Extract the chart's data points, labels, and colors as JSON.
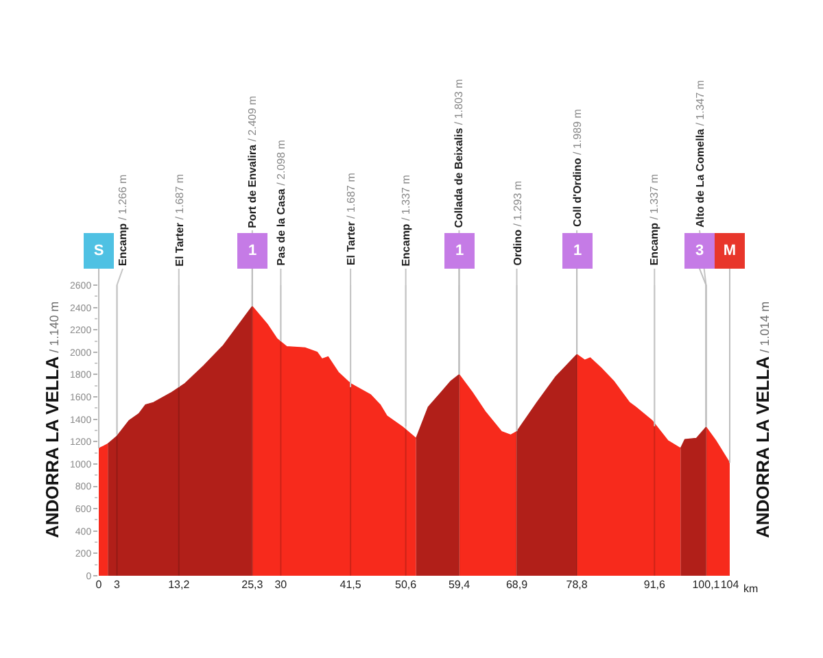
{
  "chart_data": {
    "type": "area",
    "xlim": [
      0,
      104
    ],
    "ylim": [
      0,
      2600
    ],
    "xticks": [
      0,
      3,
      {
        "value": 13.2,
        "label": "13,2"
      },
      {
        "value": 25.3,
        "label": "25,3"
      },
      30,
      {
        "value": 41.5,
        "label": "41,5"
      },
      {
        "value": 50.6,
        "label": "50,6"
      },
      {
        "value": 59.4,
        "label": "59,4"
      },
      {
        "value": 68.9,
        "label": "68,9"
      },
      {
        "value": 78.8,
        "label": "78,8"
      },
      {
        "value": 91.6,
        "label": "91,6"
      },
      {
        "value": 100.1,
        "label": "100,1"
      },
      104
    ],
    "xlabel": "km",
    "yticks": [
      0,
      {
        "value": 100,
        "label": null
      },
      200,
      {
        "value": 300,
        "label": null
      },
      400,
      {
        "value": 500,
        "label": null
      },
      600,
      {
        "value": 700,
        "label": null
      },
      800,
      {
        "value": 900,
        "label": null
      },
      1000,
      {
        "value": 1100,
        "label": null
      },
      1200,
      {
        "value": 1300,
        "label": null
      },
      1400,
      {
        "value": 1500,
        "label": null
      },
      1600,
      {
        "value": 1700,
        "label": null
      },
      1800,
      {
        "value": 1900,
        "label": null
      },
      2000,
      {
        "value": 2100,
        "label": null
      },
      2200,
      {
        "value": 2300,
        "label": null
      },
      2400,
      {
        "value": 2500,
        "label": null
      },
      2600
    ],
    "grid": "x",
    "series": [
      {
        "color": "#f72a1c",
        "x": [
          0,
          0.8,
          1.5
        ],
        "values": [
          1140,
          1160,
          1180
        ]
      },
      {
        "color": "#b11f19",
        "x": [
          1.5,
          3,
          5,
          6.6,
          7.7,
          9,
          12,
          14.2,
          17.3,
          20.5,
          23.1,
          25.3
        ],
        "values": [
          1180,
          1250,
          1390,
          1450,
          1530,
          1550,
          1640,
          1720,
          1880,
          2060,
          2250,
          2410
        ]
      },
      {
        "color": "#f72a1c",
        "x": [
          25.3,
          27.8,
          29.4,
          31,
          34,
          36,
          36.8,
          37.8,
          39.5,
          41.5,
          44.8,
          46.4,
          47.5,
          50.1,
          52.3
        ],
        "values": [
          2410,
          2250,
          2120,
          2050,
          2040,
          2000,
          1940,
          1960,
          1820,
          1720,
          1620,
          1530,
          1430,
          1330,
          1230
        ]
      },
      {
        "color": "#b11f19",
        "x": [
          52.3,
          54.3,
          56.4,
          58,
          59.4
        ],
        "values": [
          1230,
          1510,
          1640,
          1740,
          1800
        ]
      },
      {
        "color": "#f72a1c",
        "x": [
          59.4,
          61.6,
          63.7,
          66.4,
          67.9,
          68.9
        ],
        "values": [
          1800,
          1640,
          1470,
          1290,
          1260,
          1290
        ]
      },
      {
        "color": "#b11f19",
        "x": [
          68.9,
          72.2,
          75.3,
          78.8
        ],
        "values": [
          1290,
          1550,
          1780,
          1980
        ]
      },
      {
        "color": "#f72a1c",
        "x": [
          78.8,
          80.1,
          81,
          82.8,
          84.9,
          87.5,
          88.5,
          91.2,
          93.8,
          95.9
        ],
        "values": [
          1980,
          1930,
          1950,
          1860,
          1740,
          1550,
          1510,
          1390,
          1210,
          1140
        ]
      },
      {
        "color": "#b11f19",
        "x": [
          95.9,
          96.6,
          98.5,
          100.1
        ],
        "values": [
          1140,
          1220,
          1230,
          1330
        ]
      },
      {
        "color": "#f72a1c",
        "x": [
          100.1,
          101.7,
          104
        ],
        "values": [
          1330,
          1210,
          1010
        ]
      }
    ],
    "annotations": [
      {
        "text": "Encamp / 1.266 m",
        "x": 3,
        "y": 1266
      },
      {
        "text": "El Tarter / 1.687 m",
        "x": 13.2,
        "y": 1687
      },
      {
        "text": "Port de Envalira / 2.409 m",
        "x": 25.3,
        "y": 2409
      },
      {
        "text": "Pas de la Casa / 2.098 m",
        "x": 30,
        "y": 2098
      },
      {
        "text": "El Tarter / 1.687 m",
        "x": 41.5,
        "y": 1687
      },
      {
        "text": "Encamp / 1.337 m",
        "x": 50.6,
        "y": 1337
      },
      {
        "text": "Collada de Beixalis / 1.803 m",
        "x": 59.4,
        "y": 1803
      },
      {
        "text": "Ordino / 1.293 m",
        "x": 68.9,
        "y": 1293
      },
      {
        "text": "Coll d'Ordino / 1.989 m",
        "x": 78.8,
        "y": 1989
      },
      {
        "text": "Encamp / 1.337 m",
        "x": 91.6,
        "y": 1337
      },
      {
        "text": "Alto de La Comella / 1.347 m",
        "x": 100.1,
        "y": 1347
      },
      {
        "text": "1",
        "x": 25.3
      },
      {
        "text": "1",
        "x": 59.4
      },
      {
        "text": "1",
        "x": 78.8
      },
      {
        "text": "3",
        "x": 100.1
      },
      "S",
      "ANDORRA LA VELLA / 1.140 m",
      "ANDORRA LA VELLA / 1.014 m",
      "M"
    ]
  }
}
